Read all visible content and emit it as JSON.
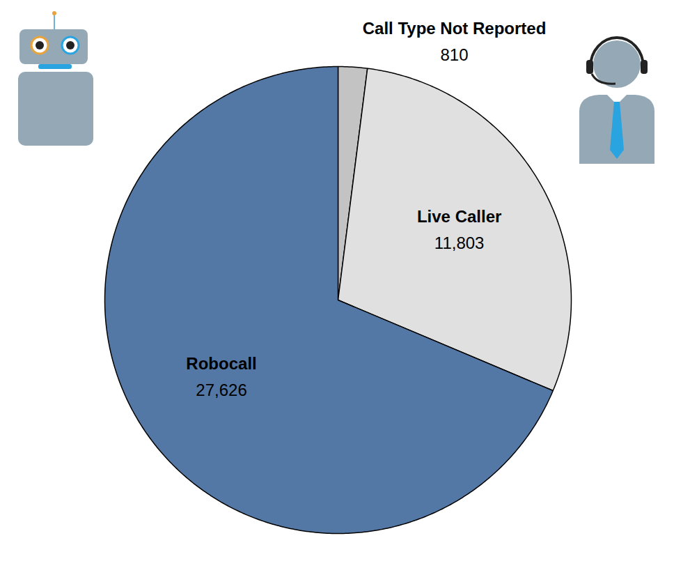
{
  "chart_data": {
    "type": "pie",
    "categories": [
      "Call Type Not Reported",
      "Live Caller",
      "Robocall"
    ],
    "values": [
      810,
      11803,
      27626
    ],
    "value_labels": [
      "810",
      "11,803",
      "27,626"
    ],
    "colors": [
      "#c3c3c3",
      "#e1e0e1",
      "#5478a5"
    ],
    "data_labels": true
  }
}
